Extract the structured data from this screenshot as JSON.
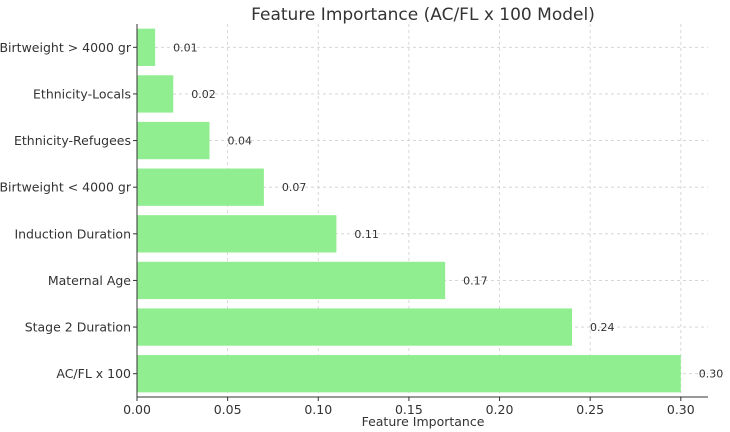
{
  "chart_data": {
    "type": "bar",
    "orientation": "horizontal",
    "title": "Feature Importance (AC/FL x 100 Model)",
    "xlabel": "Feature Importance",
    "ylabel": "",
    "categories": [
      "AC/FL x 100",
      "Stage 2 Duration",
      "Maternal Age",
      "Induction Duration",
      "Birtweight < 4000 gr",
      "Ethnicity-Refugees",
      "Ethnicity-Locals",
      "Birtweight > 4000 gr"
    ],
    "values": [
      0.3,
      0.24,
      0.17,
      0.11,
      0.07,
      0.04,
      0.02,
      0.01
    ],
    "data_labels": [
      "0.30",
      "0.24",
      "0.17",
      "0.11",
      "0.07",
      "0.04",
      "0.02",
      "0.01"
    ],
    "xlim": [
      0,
      0.315
    ],
    "xticks": [
      0.0,
      0.05,
      0.1,
      0.15,
      0.2,
      0.25,
      0.3
    ],
    "xtick_labels": [
      "0.00",
      "0.05",
      "0.10",
      "0.15",
      "0.20",
      "0.25",
      "0.30"
    ],
    "grid": true,
    "bar_color": "#90ee90"
  }
}
